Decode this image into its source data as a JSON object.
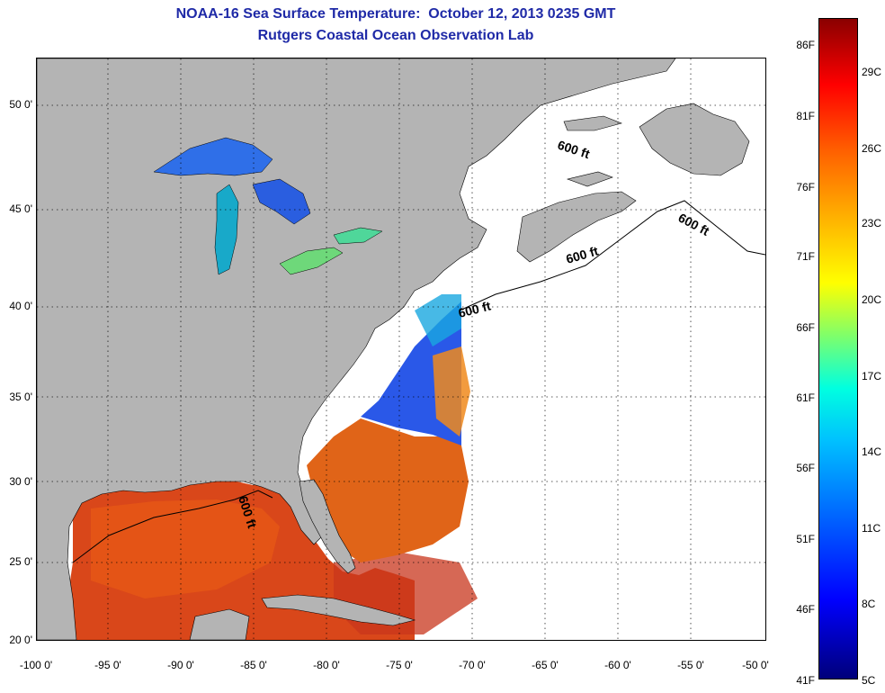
{
  "header": {
    "title": "NOAA-16 Sea Surface Temperature:  October 12, 2013 0235 GMT",
    "subtitle": "Rutgers Coastal Ocean Observation Lab"
  },
  "map": {
    "x_ticks": [
      "-100 0'",
      "-95 0'",
      "-90 0'",
      "-85 0'",
      "-80 0'",
      "-75 0'",
      "-70 0'",
      "-65 0'",
      "-60 0'",
      "-55 0'",
      "-50 0'"
    ],
    "y_ticks": [
      "20 0'",
      "25 0'",
      "30 0'",
      "35 0'",
      "40 0'",
      "45 0'",
      "50 0'"
    ],
    "contour_labels": [
      "600 ft",
      "600 ft",
      "600 ft",
      "600 ft",
      "600 ft"
    ],
    "colors": {
      "land": "#b4b4b4",
      "no_data": "#ffffff",
      "grid": "#000000"
    }
  },
  "colorbar": {
    "fahrenheit": [
      "86F",
      "81F",
      "76F",
      "71F",
      "66F",
      "61F",
      "56F",
      "51F",
      "46F",
      "41F"
    ],
    "celsius": [
      "29C",
      "26C",
      "23C",
      "20C",
      "17C",
      "14C",
      "11C",
      "8C",
      "5C"
    ]
  }
}
